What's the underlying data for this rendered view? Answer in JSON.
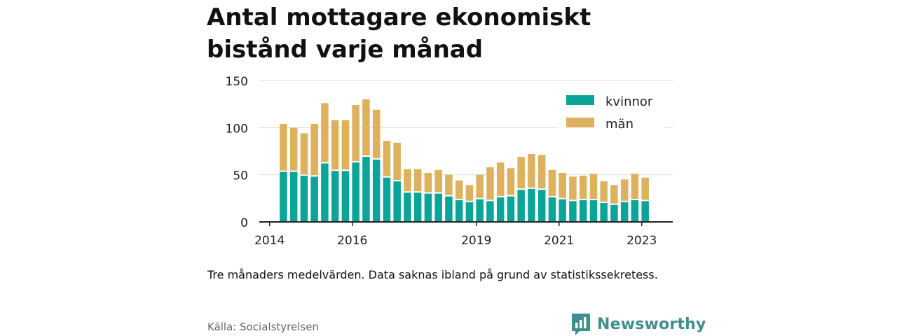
{
  "title": "Antal mottagare ekonomiskt bistånd varje månad",
  "note": "Tre månaders medelvärden. Data saknas ibland på grund av statistikssekretess.",
  "source": "Källa: Socialstyrelsen",
  "brand": "Newsworthy",
  "colors": {
    "kvinnor": "#0aa598",
    "man": "#ddb15e",
    "axis": "#222222",
    "grid": "#dddddd",
    "brand": "#3f8f8c"
  },
  "chart_data": {
    "type": "bar",
    "stacked": true,
    "x_tick_labels": [
      "2014",
      "2016",
      "2019",
      "2021",
      "2023"
    ],
    "y_ticks": [
      0,
      50,
      100,
      150
    ],
    "ylim": [
      0,
      150
    ],
    "legend_position": "top-right",
    "x": [
      "2014-05",
      "2014-08",
      "2014-11",
      "2015-02",
      "2015-05",
      "2015-08",
      "2015-11",
      "2016-02",
      "2016-05",
      "2016-08",
      "2016-11",
      "2017-02",
      "2017-05",
      "2017-08",
      "2017-11",
      "2018-02",
      "2018-05",
      "2018-08",
      "2018-11",
      "2019-02",
      "2019-05",
      "2019-08",
      "2019-11",
      "2020-02",
      "2020-05",
      "2020-08",
      "2020-11",
      "2021-02",
      "2021-05",
      "2021-08",
      "2021-11",
      "2022-02",
      "2022-05",
      "2022-08",
      "2022-11",
      "2023-02"
    ],
    "series": [
      {
        "name": "kvinnor",
        "values": [
          53,
          53,
          49,
          48,
          62,
          54,
          54,
          63,
          69,
          66,
          47,
          43,
          31,
          31,
          30,
          30,
          27,
          23,
          21,
          24,
          22,
          26,
          27,
          34,
          35,
          34,
          26,
          24,
          22,
          23,
          23,
          20,
          18,
          21,
          23,
          22
        ]
      },
      {
        "name": "män",
        "values": [
          51,
          47,
          45,
          56,
          64,
          54,
          54,
          61,
          61,
          53,
          39,
          41,
          25,
          25,
          22,
          25,
          23,
          21,
          18,
          26,
          36,
          37,
          30,
          35,
          37,
          37,
          29,
          28,
          26,
          26,
          28,
          23,
          21,
          24,
          28,
          25
        ]
      }
    ]
  }
}
